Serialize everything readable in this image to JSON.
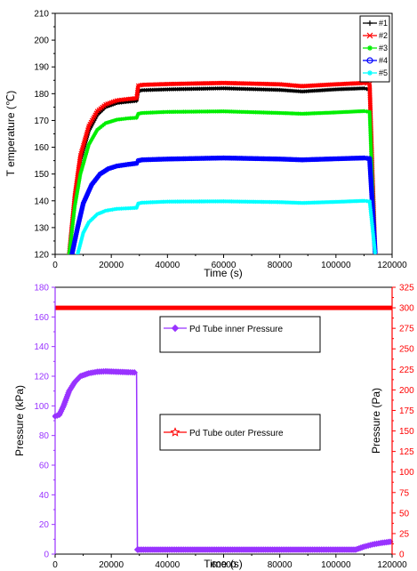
{
  "chart_data": [
    {
      "type": "line",
      "xlabel": "Time (s)",
      "ylabel": "T emperature (℃)",
      "xlim": [
        0,
        120000
      ],
      "ylim": [
        120,
        210
      ],
      "xticks": [
        "0",
        "20000",
        "40000",
        "60000",
        "80000",
        "100000",
        "120000"
      ],
      "yticks": [
        "120",
        "130",
        "140",
        "150",
        "160",
        "170",
        "180",
        "190",
        "200",
        "210"
      ],
      "legend": "top-right",
      "series": [
        {
          "name": "#1",
          "color": "#000000",
          "marker": "plus",
          "x": [
            5000,
            7000,
            9000,
            12000,
            15000,
            18000,
            22000,
            26000,
            29000,
            29600,
            31000,
            40000,
            60000,
            80000,
            88000,
            100000,
            110000,
            112000,
            113000,
            114000
          ],
          "y": [
            120,
            140,
            155,
            166,
            172,
            175,
            176.5,
            177,
            177.3,
            181,
            181.3,
            181.6,
            182,
            181.4,
            180.8,
            181.6,
            182,
            181.5,
            150,
            120
          ]
        },
        {
          "name": "#2",
          "color": "#ff0000",
          "marker": "x",
          "x": [
            5000,
            7000,
            9000,
            12000,
            15000,
            18000,
            22000,
            26000,
            29000,
            29600,
            31000,
            40000,
            60000,
            80000,
            88000,
            100000,
            110000,
            112000,
            113000,
            114000
          ],
          "y": [
            120,
            142,
            157,
            168,
            173.5,
            176,
            177.5,
            178,
            178.3,
            183,
            183.3,
            183.6,
            184,
            183.5,
            182.8,
            183.5,
            184,
            183.6,
            150,
            120
          ]
        },
        {
          "name": "#3",
          "color": "#00ee00",
          "marker": "star",
          "x": [
            5000,
            7000,
            9000,
            12000,
            15000,
            18000,
            22000,
            26000,
            29000,
            29600,
            31000,
            40000,
            60000,
            80000,
            88000,
            100000,
            110000,
            112000,
            113000,
            114000
          ],
          "y": [
            120,
            138,
            150,
            161,
            166.5,
            169,
            170.3,
            170.8,
            171,
            172.5,
            172.8,
            173.2,
            173.4,
            172.8,
            172.5,
            173,
            173.5,
            173.2,
            145,
            120
          ]
        },
        {
          "name": "#4",
          "color": "#0000ff",
          "marker": "circle-x",
          "x": [
            6000,
            8000,
            10000,
            13000,
            16000,
            19000,
            22000,
            26000,
            29000,
            29600,
            31000,
            40000,
            60000,
            80000,
            88000,
            100000,
            110000,
            112000,
            113000,
            114000
          ],
          "y": [
            120,
            130,
            139,
            146,
            150,
            152,
            153,
            153.6,
            154,
            155,
            155.3,
            155.6,
            156,
            155.6,
            155.3,
            155.7,
            156,
            155.8,
            138,
            120
          ]
        },
        {
          "name": "#5",
          "color": "#00ffff",
          "marker": "asterisk",
          "x": [
            8000,
            10000,
            12000,
            15000,
            18000,
            22000,
            26000,
            29000,
            29600,
            31000,
            40000,
            60000,
            80000,
            88000,
            100000,
            110000,
            112000,
            113000,
            114000
          ],
          "y": [
            120,
            128,
            132,
            135,
            136.3,
            137,
            137.2,
            137.4,
            139,
            139.3,
            139.7,
            139.8,
            139.5,
            139.2,
            139.6,
            140,
            139.8,
            130,
            120
          ]
        }
      ]
    },
    {
      "type": "line",
      "xlabel": "Time (s)",
      "ylabel": "Pressure (kPa)",
      "ylabel_right": "Pressure (Pa)",
      "xlim": [
        0,
        120000
      ],
      "ylim": [
        0,
        180
      ],
      "ylim_right": [
        0,
        325
      ],
      "xticks": [
        "0",
        "20000",
        "40000",
        "60000",
        "80000",
        "100000",
        "120000"
      ],
      "yticks": [
        "0",
        "20",
        "40",
        "60",
        "80",
        "100",
        "120",
        "140",
        "160",
        "180"
      ],
      "yticks_right": [
        "0",
        "25",
        "50",
        "75",
        "100",
        "125",
        "150",
        "175",
        "200",
        "225",
        "250",
        "275",
        "300",
        "325"
      ],
      "left_axis_color": "#9933ff",
      "right_axis_color": "#ff0000",
      "series": [
        {
          "name": "Pd Tube inner Pressure",
          "color": "#9933ff",
          "marker": "diamond",
          "axis": "left",
          "x": [
            0,
            1500,
            3000,
            5000,
            7000,
            9000,
            12000,
            15000,
            18000,
            22000,
            26000,
            29000,
            29300,
            29600,
            40000,
            60000,
            80000,
            100000,
            107000,
            110000,
            113000,
            116000,
            120000
          ],
          "y": [
            93,
            94,
            100,
            110,
            116,
            120,
            122,
            123,
            123.3,
            123,
            122.7,
            122.5,
            3,
            3,
            3,
            3,
            3,
            3,
            3,
            5,
            6.5,
            7.5,
            8.5
          ]
        },
        {
          "name": "Pd Tube outer Pressure",
          "color": "#ff0000",
          "marker": "star",
          "axis": "right",
          "x": [
            0,
            120000
          ],
          "y": [
            300,
            300
          ]
        }
      ]
    }
  ]
}
